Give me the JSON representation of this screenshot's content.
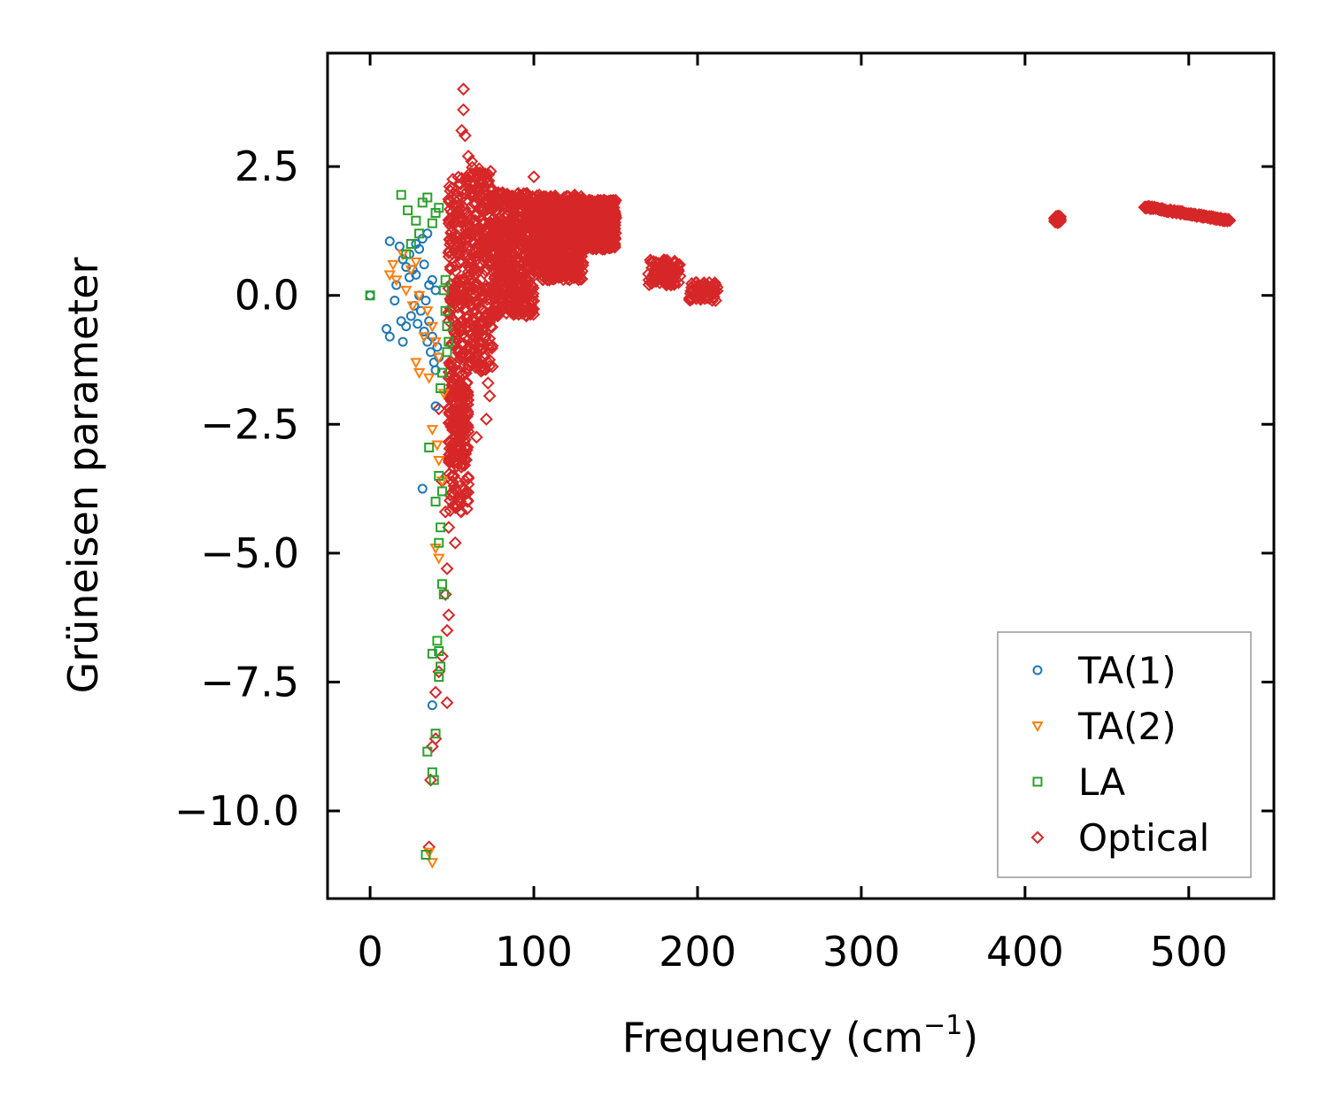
{
  "chart_data": {
    "type": "scatter",
    "title": "",
    "xlabel": "Frequency (cm",
    "xlabel_sup": "−1",
    "xlabel_end": ")",
    "ylabel": "Grüneisen parameter",
    "xlim": [
      -26,
      552
    ],
    "ylim": [
      -11.7,
      4.7
    ],
    "xticks": [
      0,
      100,
      200,
      300,
      400,
      500
    ],
    "xtick_labels": [
      "0",
      "100",
      "200",
      "300",
      "400",
      "500"
    ],
    "yticks": [
      2.5,
      0.0,
      -2.5,
      -5.0,
      -7.5,
      -10.0
    ],
    "ytick_labels": [
      "2.5",
      "0.0",
      "−2.5",
      "−5.0",
      "−7.5",
      "−10.0"
    ],
    "legend_position": "lower-right",
    "series": [
      {
        "name": "TA(1)",
        "marker": "circle",
        "color": "#1f77b4",
        "points": [
          [
            0,
            0
          ],
          [
            12,
            1.05
          ],
          [
            18,
            0.95
          ],
          [
            20,
            0.7
          ],
          [
            22,
            0.55
          ],
          [
            24,
            0.35
          ],
          [
            26,
            0.5
          ],
          [
            28,
            0.4
          ],
          [
            30,
            0.9
          ],
          [
            32,
            1.1
          ],
          [
            35,
            1.2
          ],
          [
            38,
            0.3
          ],
          [
            40,
            0.1
          ],
          [
            15,
            -0.1
          ],
          [
            10,
            -0.65
          ],
          [
            12,
            -0.8
          ],
          [
            19,
            -0.5
          ],
          [
            22,
            -0.6
          ],
          [
            25,
            -0.4
          ],
          [
            27,
            -0.2
          ],
          [
            29,
            -0.55
          ],
          [
            31,
            -0.3
          ],
          [
            33,
            -0.7
          ],
          [
            35,
            -0.9
          ],
          [
            37,
            -1.1
          ],
          [
            39,
            -1.3
          ],
          [
            41,
            -1.0
          ],
          [
            38,
            -0.8
          ],
          [
            36,
            -0.5
          ],
          [
            40,
            -1.45
          ],
          [
            42,
            -1.2
          ],
          [
            20,
            -0.9
          ],
          [
            16,
            0.2
          ],
          [
            24,
            0.8
          ],
          [
            28,
            1.0
          ],
          [
            33,
            0.6
          ],
          [
            36,
            0.2
          ],
          [
            40,
            -2.15
          ],
          [
            32,
            -3.75
          ],
          [
            38,
            -7.95
          ],
          [
            30,
            0.0
          ],
          [
            34,
            -0.1
          ]
        ]
      },
      {
        "name": "TA(2)",
        "marker": "triangle-down",
        "color": "#ff7f0e",
        "points": [
          [
            12,
            0.4
          ],
          [
            14,
            0.6
          ],
          [
            16,
            0.3
          ],
          [
            20,
            0.8
          ],
          [
            25,
            0.5
          ],
          [
            28,
            0.65
          ],
          [
            30,
            0.0
          ],
          [
            35,
            -0.3
          ],
          [
            38,
            -0.6
          ],
          [
            40,
            -0.9
          ],
          [
            42,
            -1.2
          ],
          [
            28,
            -1.3
          ],
          [
            30,
            -1.5
          ],
          [
            36,
            -1.6
          ],
          [
            38,
            -2.6
          ],
          [
            41,
            -2.9
          ],
          [
            42,
            -3.2
          ],
          [
            44,
            -3.6
          ],
          [
            40,
            -4.9
          ],
          [
            42,
            -5.1
          ],
          [
            38,
            -11.0
          ],
          [
            36,
            -10.8
          ],
          [
            22,
            0.1
          ],
          [
            26,
            -0.2
          ],
          [
            33,
            -0.8
          ],
          [
            45,
            -1.9
          ]
        ]
      },
      {
        "name": "LA",
        "marker": "square",
        "color": "#2ca02c",
        "points": [
          [
            0,
            0
          ],
          [
            19,
            1.95
          ],
          [
            23,
            1.65
          ],
          [
            28,
            1.45
          ],
          [
            32,
            1.8
          ],
          [
            35,
            1.9
          ],
          [
            38,
            1.4
          ],
          [
            40,
            1.6
          ],
          [
            42,
            1.7
          ],
          [
            30,
            1.2
          ],
          [
            25,
            1.0
          ],
          [
            22,
            0.8
          ],
          [
            45,
            0.1
          ],
          [
            46,
            -0.3
          ],
          [
            47,
            -0.6
          ],
          [
            48,
            -0.9
          ],
          [
            44,
            -1.5
          ],
          [
            43,
            -1.8
          ],
          [
            36,
            -2.95
          ],
          [
            42,
            -3.5
          ],
          [
            44,
            -3.8
          ],
          [
            40,
            -4.0
          ],
          [
            43,
            -4.5
          ],
          [
            42,
            -4.8
          ],
          [
            44,
            -5.6
          ],
          [
            45,
            -5.8
          ],
          [
            41,
            -6.7
          ],
          [
            42,
            -6.9
          ],
          [
            38,
            -6.95
          ],
          [
            43,
            -7.2
          ],
          [
            42,
            -7.4
          ],
          [
            40,
            -8.5
          ],
          [
            35,
            -8.85
          ],
          [
            38,
            -9.25
          ],
          [
            39,
            -9.4
          ],
          [
            34,
            -10.85
          ],
          [
            46,
            0.3
          ],
          [
            47,
            -1.1
          ]
        ]
      },
      {
        "name": "Optical",
        "marker": "diamond",
        "color": "#d62728",
        "points": [],
        "dense_regions": [
          {
            "x": [
              48,
              150
            ],
            "y_top": [
              0.5,
              2.0
            ],
            "y_bottom": [
              -1.5,
              0.8
            ],
            "note": "dense cluster"
          },
          {
            "x": [
              170,
              190
            ],
            "y": [
              0.2,
              0.7
            ]
          },
          {
            "x": [
              195,
              212
            ],
            "y": [
              -0.1,
              0.25
            ]
          },
          {
            "x": [
              418,
              422
            ],
            "y": [
              1.4,
              1.55
            ]
          },
          {
            "x": [
              473,
              525
            ],
            "y_start": 1.72,
            "y_end": 1.45
          }
        ],
        "outliers": [
          [
            57,
            4.0
          ],
          [
            57,
            3.6
          ],
          [
            56,
            3.2
          ],
          [
            58,
            3.1
          ],
          [
            60,
            2.7
          ],
          [
            62,
            2.6
          ],
          [
            100,
            2.3
          ],
          [
            150,
            1.5
          ],
          [
            140,
            0.95
          ],
          [
            55,
            -2.0
          ],
          [
            58,
            -2.5
          ],
          [
            65,
            -2.75
          ],
          [
            72,
            -1.7
          ],
          [
            73,
            -1.95
          ],
          [
            71,
            -2.4
          ],
          [
            50,
            -3.5
          ],
          [
            55,
            -4.0
          ],
          [
            52,
            -4.8
          ],
          [
            47,
            -5.3
          ],
          [
            46,
            -5.8
          ],
          [
            48,
            -6.2
          ],
          [
            47,
            -6.5
          ],
          [
            44,
            -7.0
          ],
          [
            42,
            -7.3
          ],
          [
            40,
            -7.7
          ],
          [
            47,
            -7.9
          ],
          [
            40,
            -8.6
          ],
          [
            38,
            -8.75
          ],
          [
            37,
            -9.4
          ],
          [
            36,
            -10.7
          ],
          [
            44,
            -3.6
          ],
          [
            42,
            -2.2
          ],
          [
            46,
            -4.2
          ],
          [
            48,
            -4.5
          ]
        ]
      }
    ]
  }
}
